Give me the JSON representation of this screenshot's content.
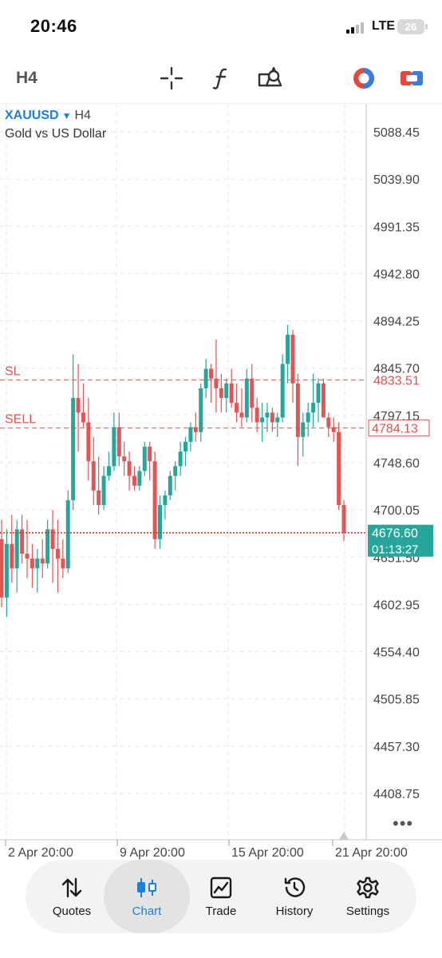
{
  "status_bar": {
    "time": "20:46",
    "network": "LTE",
    "battery": "26"
  },
  "toolbar": {
    "timeframe": "H4",
    "icons": [
      "crosshair-icon",
      "indicator-function-icon",
      "objects-shapes-icon",
      "color-theme-icon",
      "one-click-trading-icon"
    ]
  },
  "chart": {
    "symbol": "XAUUSD",
    "timeframe": "H4",
    "description": "Gold vs US Dollar",
    "price_levels": [
      "5088.45",
      "5039.90",
      "4991.35",
      "4942.80",
      "4894.25",
      "4845.70",
      "4797.15",
      "4748.60",
      "4700.05",
      "4651.50",
      "4602.95",
      "4554.40",
      "4505.85",
      "4457.30",
      "4408.75"
    ],
    "sl": {
      "label": "SL",
      "price": "4833.51"
    },
    "sell": {
      "label": "SELL",
      "price": "4784.13"
    },
    "current": {
      "price": "4676.60",
      "countdown": "01:13:27"
    },
    "date_labels": [
      "2 Apr 20:00",
      "9 Apr 20:00",
      "15 Apr 20:00",
      "21 Apr 20:00"
    ],
    "colors": {
      "bull": "#26a69a",
      "bear": "#e05555",
      "grid": "#e6e6e6",
      "axis": "#d8d8d8",
      "accent": "#1e7fd6"
    }
  },
  "chart_data": {
    "type": "candlestick",
    "symbol": "XAUUSD",
    "timeframe": "H4",
    "ylim": [
      4390,
      5110
    ],
    "candles": [
      [
        4670,
        4690,
        4600,
        4610
      ],
      [
        4610,
        4680,
        4590,
        4665
      ],
      [
        4665,
        4695,
        4625,
        4640
      ],
      [
        4640,
        4690,
        4615,
        4680
      ],
      [
        4680,
        4695,
        4645,
        4655
      ],
      [
        4655,
        4690,
        4630,
        4650
      ],
      [
        4650,
        4665,
        4620,
        4640
      ],
      [
        4640,
        4660,
        4615,
        4650
      ],
      [
        4650,
        4670,
        4630,
        4645
      ],
      [
        4645,
        4690,
        4640,
        4680
      ],
      [
        4680,
        4700,
        4625,
        4660
      ],
      [
        4660,
        4690,
        4615,
        4650
      ],
      [
        4650,
        4670,
        4630,
        4640
      ],
      [
        4640,
        4720,
        4635,
        4710
      ],
      [
        4710,
        4860,
        4700,
        4815
      ],
      [
        4815,
        4850,
        4760,
        4800
      ],
      [
        4800,
        4830,
        4785,
        4790
      ],
      [
        4790,
        4815,
        4730,
        4750
      ],
      [
        4750,
        4775,
        4705,
        4720
      ],
      [
        4720,
        4755,
        4695,
        4705
      ],
      [
        4705,
        4745,
        4700,
        4735
      ],
      [
        4735,
        4760,
        4730,
        4745
      ],
      [
        4745,
        4800,
        4740,
        4785
      ],
      [
        4785,
        4800,
        4745,
        4755
      ],
      [
        4755,
        4770,
        4735,
        4750
      ],
      [
        4750,
        4760,
        4720,
        4735
      ],
      [
        4735,
        4745,
        4720,
        4725
      ],
      [
        4725,
        4745,
        4720,
        4740
      ],
      [
        4740,
        4770,
        4735,
        4765
      ],
      [
        4765,
        4770,
        4730,
        4750
      ],
      [
        4750,
        4760,
        4660,
        4670
      ],
      [
        4670,
        4715,
        4660,
        4705
      ],
      [
        4705,
        4720,
        4690,
        4715
      ],
      [
        4715,
        4740,
        4710,
        4735
      ],
      [
        4735,
        4750,
        4720,
        4745
      ],
      [
        4745,
        4770,
        4735,
        4760
      ],
      [
        4760,
        4775,
        4745,
        4770
      ],
      [
        4770,
        4790,
        4760,
        4785
      ],
      [
        4785,
        4800,
        4770,
        4780
      ],
      [
        4780,
        4830,
        4770,
        4825
      ],
      [
        4825,
        4855,
        4815,
        4845
      ],
      [
        4845,
        4850,
        4810,
        4835
      ],
      [
        4835,
        4875,
        4800,
        4825
      ],
      [
        4825,
        4840,
        4800,
        4815
      ],
      [
        4815,
        4835,
        4800,
        4830
      ],
      [
        4830,
        4845,
        4805,
        4810
      ],
      [
        4810,
        4830,
        4790,
        4800
      ],
      [
        4800,
        4825,
        4785,
        4795
      ],
      [
        4795,
        4845,
        4790,
        4835
      ],
      [
        4835,
        4850,
        4790,
        4805
      ],
      [
        4805,
        4815,
        4780,
        4790
      ],
      [
        4790,
        4810,
        4770,
        4795
      ],
      [
        4795,
        4810,
        4780,
        4800
      ],
      [
        4800,
        4805,
        4780,
        4790
      ],
      [
        4790,
        4800,
        4775,
        4795
      ],
      [
        4795,
        4860,
        4790,
        4850
      ],
      [
        4850,
        4890,
        4830,
        4880
      ],
      [
        4880,
        4885,
        4810,
        4830
      ],
      [
        4830,
        4840,
        4745,
        4775
      ],
      [
        4775,
        4800,
        4755,
        4790
      ],
      [
        4790,
        4810,
        4775,
        4800
      ],
      [
        4800,
        4840,
        4785,
        4810
      ],
      [
        4810,
        4835,
        4790,
        4830
      ],
      [
        4830,
        4835,
        4800,
        4795
      ],
      [
        4795,
        4800,
        4775,
        4785
      ],
      [
        4785,
        4795,
        4770,
        4780
      ],
      [
        4780,
        4790,
        4700,
        4705
      ],
      [
        4705,
        4710,
        4668,
        4676.6
      ]
    ]
  },
  "bottom_nav": {
    "items": [
      {
        "label": "Quotes",
        "icon": "quotes-arrows-icon",
        "active": false
      },
      {
        "label": "Chart",
        "icon": "candlestick-chart-icon",
        "active": true
      },
      {
        "label": "Trade",
        "icon": "trade-line-chart-icon",
        "active": false
      },
      {
        "label": "History",
        "icon": "history-clock-icon",
        "active": false
      },
      {
        "label": "Settings",
        "icon": "settings-gear-icon",
        "active": false
      }
    ]
  }
}
